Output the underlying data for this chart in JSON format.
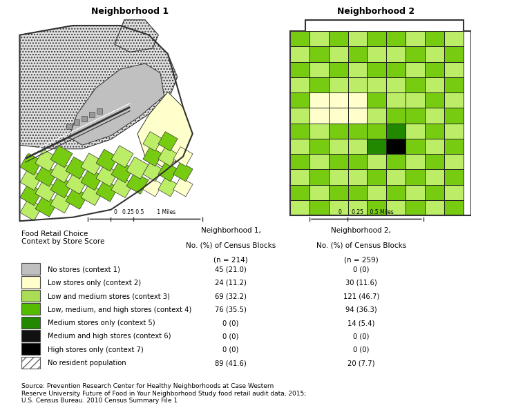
{
  "title1": "Neighborhood 1",
  "title2": "Neighborhood 2",
  "legend_items": [
    {
      "label": "No stores (context 1)",
      "color": "#c0c0c0",
      "hatch": null,
      "n1": "45 (21.0)",
      "n2": "0 (0)"
    },
    {
      "label": "Low stores only (context 2)",
      "color": "#ffffcc",
      "hatch": null,
      "n1": "24 (11.2)",
      "n2": "30 (11.6)"
    },
    {
      "label": "Low and medium stores (context 3)",
      "color": "#aadd55",
      "hatch": null,
      "n1": "69 (32.2)",
      "n2": "121 (46.7)"
    },
    {
      "label": "Low, medium, and high stores (context 4)",
      "color": "#55bb00",
      "hatch": null,
      "n1": "76 (35.5)",
      "n2": "94 (36.3)"
    },
    {
      "label": "Medium stores only (context 5)",
      "color": "#228800",
      "hatch": null,
      "n1": "0 (0)",
      "n2": "14 (5.4)"
    },
    {
      "label": "Medium and high stores (context 6)",
      "color": "#111111",
      "hatch": null,
      "n1": "0 (0)",
      "n2": "0 (0)"
    },
    {
      "label": "High stores only (context 7)",
      "color": "#000000",
      "hatch": null,
      "n1": "0 (0)",
      "n2": "0 (0)"
    },
    {
      "label": "No resident population",
      "color": "#ffffff",
      "hatch": "///",
      "n1": "89 (41.6)",
      "n2": "20 (7.7)"
    }
  ],
  "source_text": "Source: Prevention Research Center for Healthy Neighborhoods at Case Western\nReserve University Future of Food in Your Neighborhood Study food retail audit data, 2015;\nU.S. Census Bureau. 2010 Census Summary File 1",
  "bg_color": "#ffffff",
  "c_no_stores": "#c0c0c0",
  "c_low_only": "#ffffcc",
  "c_low_med": "#bbee66",
  "c_low_med_high": "#77cc11",
  "c_med_only": "#228800",
  "c_med_high": "#111111",
  "c_high_only": "#000000",
  "c_no_res": "#e0e0e0"
}
